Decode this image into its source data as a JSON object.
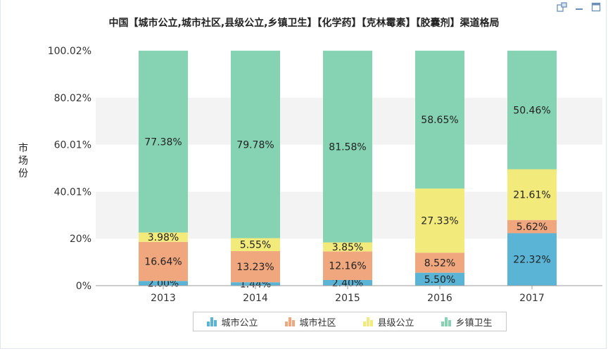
{
  "toolbar": {
    "icons": [
      "export-icon",
      "minimize-icon",
      "maximize-icon"
    ]
  },
  "chart_data": {
    "type": "bar",
    "stacked": true,
    "title": "中国【城市公立,城市社区,县级公立,乡镇卫生】【化学药】【克林霉素】【胶囊剂】渠道格局",
    "xlabel": "",
    "ylabel": "市场份",
    "categories": [
      "2013",
      "2014",
      "2015",
      "2016",
      "2017"
    ],
    "y_ticks": [
      "0%",
      "20%",
      "40.01%",
      "60.01%",
      "80.02%",
      "100.02%"
    ],
    "ylim": [
      0,
      100.02
    ],
    "grid": "horizontal bands",
    "legend_position": "bottom",
    "series": [
      {
        "name": "城市公立",
        "color": "#5ab4d6",
        "values": [
          2.0,
          1.44,
          2.4,
          5.5,
          22.32
        ],
        "labels": [
          "2.00%",
          "1.44%",
          "2.40%",
          "5.50%",
          "22.32%"
        ]
      },
      {
        "name": "城市社区",
        "color": "#f0a77e",
        "values": [
          16.64,
          13.23,
          12.16,
          8.52,
          5.62
        ],
        "labels": [
          "16.64%",
          "13.23%",
          "12.16%",
          "8.52%",
          "5.62%"
        ]
      },
      {
        "name": "县级公立",
        "color": "#f2ea7a",
        "values": [
          3.98,
          5.55,
          3.85,
          27.33,
          21.61
        ],
        "labels": [
          "3.98%",
          "5.55%",
          "3.85%",
          "27.33%",
          "21.61%"
        ]
      },
      {
        "name": "乡镇卫生",
        "color": "#85d3b3",
        "values": [
          77.38,
          79.78,
          81.58,
          58.65,
          50.46
        ],
        "labels": [
          "77.38%",
          "79.78%",
          "81.58%",
          "58.65%",
          "50.46%"
        ]
      }
    ]
  }
}
